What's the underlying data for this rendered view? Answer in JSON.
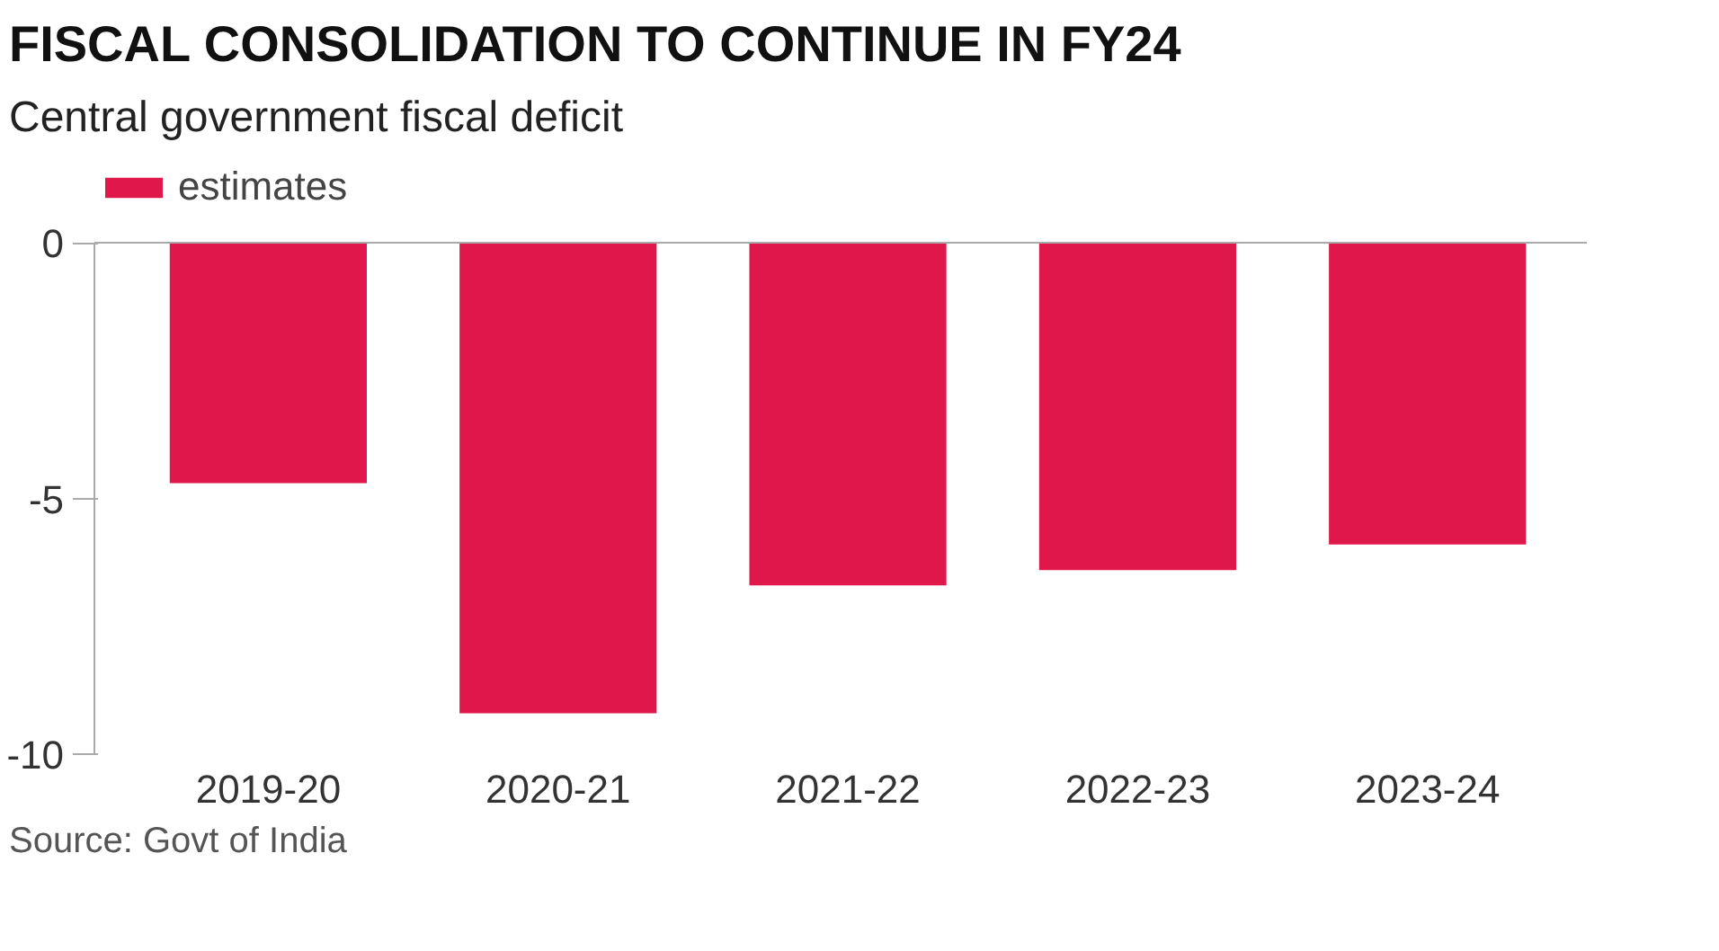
{
  "chart_data": {
    "type": "bar",
    "title": "FISCAL CONSOLIDATION TO CONTINUE IN FY24",
    "subtitle": "Central government fiscal deficit",
    "categories": [
      "2019-20",
      "2020-21",
      "2021-22",
      "2022-23",
      "2023-24"
    ],
    "series": [
      {
        "name": "estimates",
        "color": "#e0174a",
        "values": [
          -4.7,
          -9.2,
          -6.7,
          -6.4,
          -5.9
        ]
      }
    ],
    "ylim": [
      -10,
      0
    ],
    "yticks": [
      0,
      -5,
      -10
    ],
    "grid": false,
    "legend": "top left",
    "ref_lines": [
      {
        "axis": "y",
        "value": 0,
        "color": "#aaaaaa"
      }
    ],
    "annotations": [
      "Source: Govt of India"
    ]
  }
}
